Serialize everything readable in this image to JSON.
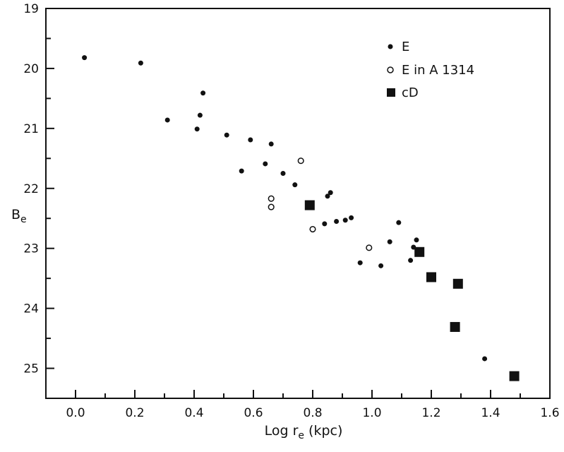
{
  "chart_data": {
    "type": "scatter",
    "title": "",
    "xlabel": {
      "main": "Log r",
      "sub": "e",
      "unit": "(kpc)"
    },
    "ylabel": {
      "main": "B",
      "sub": "e"
    },
    "xlim": [
      -0.1,
      1.6
    ],
    "ylim": [
      19,
      25.5
    ],
    "y_inverted": true,
    "grid": false,
    "legend_position": "top-right",
    "x_ticks": [
      0.0,
      0.2,
      0.4,
      0.6,
      0.8,
      1.0,
      1.2,
      1.4,
      1.6
    ],
    "x_tick_labels": [
      "0.0",
      "0.2",
      "0.4",
      "0.6",
      "0.8",
      "1.0",
      "1.2",
      "1.4",
      "1.6"
    ],
    "y_ticks": [
      19,
      20,
      21,
      22,
      23,
      24,
      25
    ],
    "y_tick_labels": [
      "19",
      "20",
      "21",
      "22",
      "23",
      "24",
      "25"
    ],
    "series": [
      {
        "name": "E",
        "marker": "filled-circle",
        "color": "#111111",
        "points": [
          [
            0.03,
            19.82
          ],
          [
            0.22,
            19.91
          ],
          [
            0.31,
            20.86
          ],
          [
            0.41,
            21.01
          ],
          [
            0.42,
            20.78
          ],
          [
            0.43,
            20.41
          ],
          [
            0.51,
            21.11
          ],
          [
            0.56,
            21.71
          ],
          [
            0.59,
            21.19
          ],
          [
            0.64,
            21.59
          ],
          [
            0.66,
            21.26
          ],
          [
            0.7,
            21.75
          ],
          [
            0.74,
            21.94
          ],
          [
            0.85,
            22.13
          ],
          [
            0.86,
            22.07
          ],
          [
            0.84,
            22.59
          ],
          [
            0.88,
            22.55
          ],
          [
            0.91,
            22.53
          ],
          [
            0.93,
            22.49
          ],
          [
            0.96,
            23.24
          ],
          [
            1.03,
            23.29
          ],
          [
            1.06,
            22.89
          ],
          [
            1.09,
            22.57
          ],
          [
            1.13,
            23.2
          ],
          [
            1.14,
            22.98
          ],
          [
            1.15,
            22.86
          ],
          [
            1.38,
            24.84
          ]
        ]
      },
      {
        "name": "E in A 1314",
        "marker": "open-circle",
        "color": "#111111",
        "points": [
          [
            0.66,
            22.17
          ],
          [
            0.66,
            22.31
          ],
          [
            0.76,
            21.54
          ],
          [
            0.8,
            22.68
          ],
          [
            0.99,
            22.99
          ]
        ]
      },
      {
        "name": "cD",
        "marker": "filled-square",
        "color": "#111111",
        "points": [
          [
            0.79,
            22.28
          ],
          [
            1.16,
            23.06
          ],
          [
            1.2,
            23.48
          ],
          [
            1.29,
            23.59
          ],
          [
            1.28,
            24.31
          ],
          [
            1.48,
            25.13
          ]
        ]
      }
    ]
  }
}
